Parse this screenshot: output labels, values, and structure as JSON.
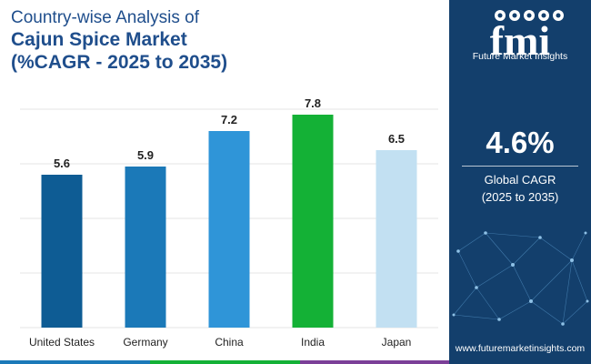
{
  "title": {
    "line1": "Country-wise Analysis of",
    "line2": "Cajun Spice Market",
    "line3": "(%CAGR - 2025 to 2035)"
  },
  "chart_data": {
    "type": "bar",
    "categories": [
      "United States",
      "Germany",
      "China",
      "India",
      "Japan"
    ],
    "values": [
      5.6,
      5.9,
      7.2,
      7.8,
      6.5
    ],
    "value_labels": [
      "5.6",
      "5.9",
      "7.2",
      "7.8",
      "6.5"
    ],
    "colors": [
      "#0e5c94",
      "#1b79b8",
      "#2f95d8",
      "#14b136",
      "#c2e0f2"
    ],
    "ylim": [
      0,
      8
    ],
    "grid": true,
    "legend": "none"
  },
  "side_panel": {
    "brand_name": "Future Market Insights",
    "logo_letters": "fmi",
    "cagr_value": "4.6%",
    "cagr_label_line1": "Global CAGR",
    "cagr_label_line2": "(2025 to 2035)",
    "website": "www.futuremarketinsights.com",
    "background_color": "#133f6c"
  },
  "bottom_bar_colors": [
    "#1b79b8",
    "#14b136",
    "#7b3f98"
  ]
}
